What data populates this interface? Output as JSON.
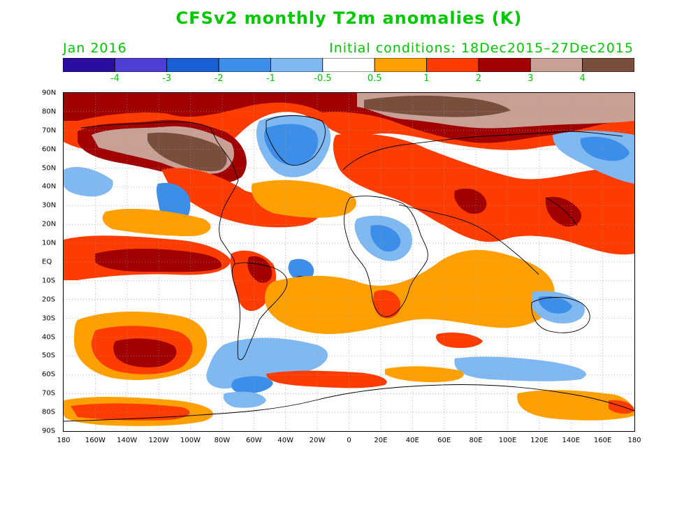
{
  "title": "CFSv2 monthly T2m anomalies (K)",
  "forecast_month": "Jan 2016",
  "initial_conditions": "Initial conditions: 18Dec2015–27Dec2015",
  "colorbar": {
    "colors": [
      "#2a0ca0",
      "#4d3ed6",
      "#1a5fd6",
      "#3d8ee8",
      "#80b9f2",
      "#ffffff",
      "#ffa000",
      "#ff3c00",
      "#a00000",
      "#c8a095",
      "#7a4e3c"
    ],
    "labels": [
      "-4",
      "-3",
      "-2",
      "-1",
      "-0.5",
      "0.5",
      "1",
      "2",
      "3",
      "4"
    ]
  },
  "lat_labels": [
    "90N",
    "80N",
    "70N",
    "60N",
    "50N",
    "40N",
    "30N",
    "20N",
    "10N",
    "EQ",
    "10S",
    "20S",
    "30S",
    "40S",
    "50S",
    "60S",
    "70S",
    "80S",
    "90S"
  ],
  "lon_labels": [
    "180",
    "160W",
    "140W",
    "120W",
    "100W",
    "80W",
    "60W",
    "40W",
    "20W",
    "0",
    "20E",
    "40E",
    "60E",
    "80E",
    "100E",
    "120E",
    "140E",
    "160E",
    "180"
  ],
  "colors": {
    "text": "#00c800",
    "coast": "#000000",
    "gridlines": "#999999"
  }
}
